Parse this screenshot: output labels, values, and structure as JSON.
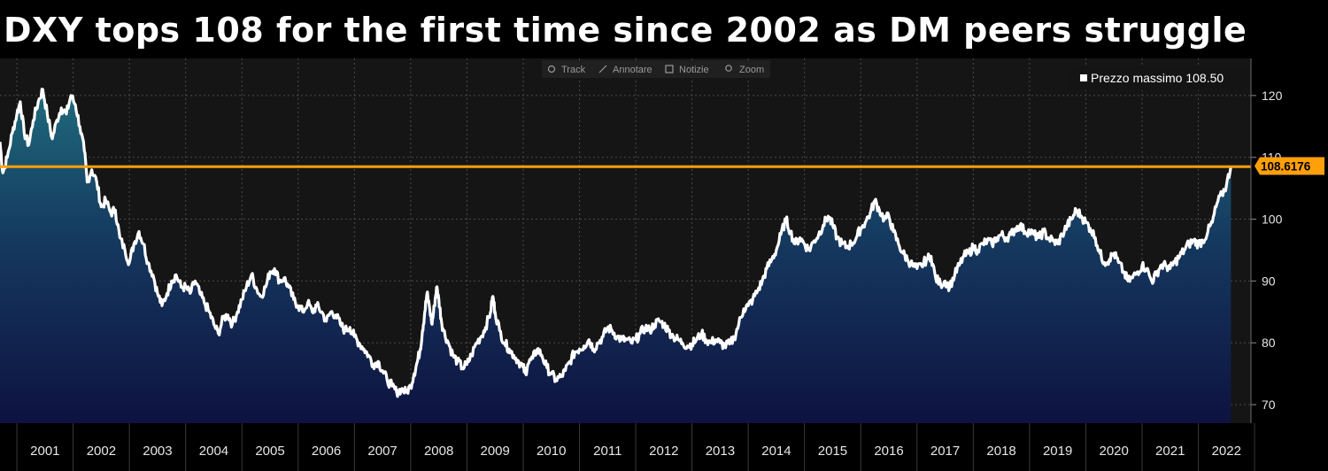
{
  "title": "DXY tops 108 for the first time since 2002 as DM peers struggle",
  "toolbar": {
    "items": [
      {
        "label": "Track",
        "icon": "track-icon"
      },
      {
        "label": "Annotare",
        "icon": "pencil-icon"
      },
      {
        "label": "Notizie",
        "icon": "news-icon"
      },
      {
        "label": "Zoom",
        "icon": "zoom-icon"
      }
    ]
  },
  "colors": {
    "background": "#151515",
    "line": "#ffffff",
    "fill_top": "#1f6a7c",
    "fill_bottom": "#0e1240",
    "threshold": "#ff9f0a",
    "grid": "#4a4a4a",
    "axis_text": "#e6e6e6"
  },
  "chart_data": {
    "type": "area",
    "title": "DXY tops 108 for the first time since 2002 as DM peers struggle",
    "xlabel": "",
    "ylabel": "",
    "x_range": [
      2000.7,
      2022.7
    ],
    "ylim": [
      67,
      126
    ],
    "yticks": [
      70,
      80,
      90,
      100,
      110,
      120
    ],
    "xticks": [
      "2001",
      "2002",
      "2003",
      "2004",
      "2005",
      "2006",
      "2007",
      "2008",
      "2009",
      "2010",
      "2011",
      "2012",
      "2013",
      "2014",
      "2015",
      "2016",
      "2017",
      "2018",
      "2019",
      "2020",
      "2021",
      "2022"
    ],
    "grid": true,
    "legend": {
      "position": "top-right",
      "label": "Prezzo massimo 108.50"
    },
    "threshold": {
      "value": 108.5
    },
    "last_value_label": "108.6176",
    "series": [
      {
        "values": [
          [
            2000.7,
            112.5
          ],
          [
            2000.75,
            107.5
          ],
          [
            2000.83,
            110.0
          ],
          [
            2000.92,
            114.0
          ],
          [
            2001.0,
            117.0
          ],
          [
            2001.06,
            119.0
          ],
          [
            2001.13,
            114.0
          ],
          [
            2001.21,
            112.0
          ],
          [
            2001.29,
            116.0
          ],
          [
            2001.38,
            119.0
          ],
          [
            2001.46,
            121.0
          ],
          [
            2001.54,
            117.0
          ],
          [
            2001.63,
            113.0
          ],
          [
            2001.71,
            116.0
          ],
          [
            2001.79,
            118.0
          ],
          [
            2001.88,
            117.0
          ],
          [
            2001.96,
            120.0
          ],
          [
            2002.04,
            118.5
          ],
          [
            2002.12,
            115.0
          ],
          [
            2002.2,
            111.0
          ],
          [
            2002.25,
            106.0
          ],
          [
            2002.33,
            108.0
          ],
          [
            2002.42,
            106.0
          ],
          [
            2002.5,
            102.0
          ],
          [
            2002.58,
            103.0
          ],
          [
            2002.67,
            101.0
          ],
          [
            2002.75,
            101.5
          ],
          [
            2002.83,
            97.0
          ],
          [
            2002.92,
            95.0
          ],
          [
            2003.0,
            93.0
          ],
          [
            2003.08,
            96.0
          ],
          [
            2003.17,
            98.0
          ],
          [
            2003.25,
            96.0
          ],
          [
            2003.33,
            93.0
          ],
          [
            2003.42,
            91.0
          ],
          [
            2003.5,
            88.0
          ],
          [
            2003.58,
            86.0
          ],
          [
            2003.67,
            88.0
          ],
          [
            2003.75,
            90.0
          ],
          [
            2003.83,
            91.0
          ],
          [
            2003.92,
            89.0
          ],
          [
            2004.0,
            89.0
          ],
          [
            2004.08,
            88.0
          ],
          [
            2004.17,
            90.0
          ],
          [
            2004.25,
            88.0
          ],
          [
            2004.33,
            86.5
          ],
          [
            2004.42,
            85.0
          ],
          [
            2004.5,
            83.0
          ],
          [
            2004.58,
            81.5
          ],
          [
            2004.67,
            84.0
          ],
          [
            2004.75,
            84.5
          ],
          [
            2004.83,
            83.0
          ],
          [
            2004.92,
            85.0
          ],
          [
            2005.0,
            87.0
          ],
          [
            2005.08,
            89.0
          ],
          [
            2005.17,
            91.0
          ],
          [
            2005.25,
            89.0
          ],
          [
            2005.33,
            87.5
          ],
          [
            2005.42,
            89.0
          ],
          [
            2005.5,
            91.5
          ],
          [
            2005.58,
            92.0
          ],
          [
            2005.67,
            90.0
          ],
          [
            2005.75,
            90.5
          ],
          [
            2005.83,
            89.0
          ],
          [
            2005.92,
            87.0
          ],
          [
            2006.0,
            86.0
          ],
          [
            2006.08,
            85.0
          ],
          [
            2006.17,
            86.5
          ],
          [
            2006.25,
            85.0
          ],
          [
            2006.33,
            86.0
          ],
          [
            2006.42,
            85.0
          ],
          [
            2006.5,
            83.5
          ],
          [
            2006.58,
            85.0
          ],
          [
            2006.67,
            84.5
          ],
          [
            2006.75,
            83.0
          ],
          [
            2006.83,
            82.0
          ],
          [
            2006.92,
            82.5
          ],
          [
            2007.0,
            81.0
          ],
          [
            2007.08,
            80.0
          ],
          [
            2007.17,
            79.0
          ],
          [
            2007.25,
            78.0
          ],
          [
            2007.33,
            76.5
          ],
          [
            2007.42,
            77.0
          ],
          [
            2007.5,
            75.5
          ],
          [
            2007.58,
            74.0
          ],
          [
            2007.67,
            73.0
          ],
          [
            2007.75,
            72.0
          ],
          [
            2007.83,
            72.5
          ],
          [
            2007.92,
            72.0
          ],
          [
            2008.0,
            73.0
          ],
          [
            2008.06,
            75.0
          ],
          [
            2008.12,
            77.0
          ],
          [
            2008.17,
            79.0
          ],
          [
            2008.21,
            82.0
          ],
          [
            2008.25,
            85.0
          ],
          [
            2008.29,
            88.0
          ],
          [
            2008.33,
            86.0
          ],
          [
            2008.38,
            83.0
          ],
          [
            2008.42,
            86.0
          ],
          [
            2008.46,
            89.0
          ],
          [
            2008.5,
            87.0
          ],
          [
            2008.54,
            84.0
          ],
          [
            2008.58,
            82.0
          ],
          [
            2008.67,
            80.0
          ],
          [
            2008.75,
            78.0
          ],
          [
            2008.83,
            77.0
          ],
          [
            2008.92,
            76.0
          ],
          [
            2009.0,
            76.5
          ],
          [
            2009.08,
            78.0
          ],
          [
            2009.17,
            80.0
          ],
          [
            2009.25,
            81.0
          ],
          [
            2009.33,
            82.5
          ],
          [
            2009.42,
            85.0
          ],
          [
            2009.46,
            87.5
          ],
          [
            2009.5,
            85.0
          ],
          [
            2009.58,
            82.0
          ],
          [
            2009.67,
            80.0
          ],
          [
            2009.75,
            79.0
          ],
          [
            2009.83,
            78.0
          ],
          [
            2009.92,
            77.0
          ],
          [
            2010.0,
            76.0
          ],
          [
            2010.04,
            75.0
          ],
          [
            2010.08,
            76.5
          ],
          [
            2010.17,
            77.5
          ],
          [
            2010.25,
            79.0
          ],
          [
            2010.33,
            78.0
          ],
          [
            2010.42,
            76.0
          ],
          [
            2010.5,
            75.0
          ],
          [
            2010.58,
            74.0
          ],
          [
            2010.67,
            74.5
          ],
          [
            2010.75,
            75.5
          ],
          [
            2010.83,
            77.0
          ],
          [
            2010.92,
            78.5
          ],
          [
            2011.0,
            79.0
          ],
          [
            2011.08,
            79.5
          ],
          [
            2011.17,
            80.5
          ],
          [
            2011.25,
            79.0
          ],
          [
            2011.33,
            80.0
          ],
          [
            2011.42,
            81.0
          ],
          [
            2011.5,
            82.5
          ],
          [
            2011.58,
            82.0
          ],
          [
            2011.67,
            81.0
          ],
          [
            2011.75,
            80.5
          ],
          [
            2011.83,
            80.5
          ],
          [
            2011.92,
            80.0
          ],
          [
            2012.0,
            80.5
          ],
          [
            2012.08,
            81.5
          ],
          [
            2012.17,
            82.5
          ],
          [
            2012.25,
            82.0
          ],
          [
            2012.33,
            83.0
          ],
          [
            2012.42,
            83.5
          ],
          [
            2012.5,
            83.0
          ],
          [
            2012.58,
            82.0
          ],
          [
            2012.67,
            81.0
          ],
          [
            2012.75,
            80.5
          ],
          [
            2012.83,
            80.0
          ],
          [
            2012.92,
            79.5
          ],
          [
            2013.0,
            79.8
          ],
          [
            2013.08,
            80.5
          ],
          [
            2013.17,
            81.5
          ],
          [
            2013.25,
            80.5
          ],
          [
            2013.33,
            80.0
          ],
          [
            2013.42,
            80.5
          ],
          [
            2013.5,
            80.0
          ],
          [
            2013.58,
            79.5
          ],
          [
            2013.67,
            79.8
          ],
          [
            2013.75,
            80.8
          ],
          [
            2013.83,
            83.0
          ],
          [
            2013.92,
            85.5
          ],
          [
            2014.0,
            86.0
          ],
          [
            2014.08,
            87.0
          ],
          [
            2014.17,
            88.5
          ],
          [
            2014.25,
            90.0
          ],
          [
            2014.33,
            92.0
          ],
          [
            2014.42,
            93.5
          ],
          [
            2014.5,
            95.0
          ],
          [
            2014.58,
            97.5
          ],
          [
            2014.67,
            100.0
          ],
          [
            2014.75,
            98.0
          ],
          [
            2014.83,
            96.0
          ],
          [
            2014.92,
            97.0
          ],
          [
            2015.0,
            96.0
          ],
          [
            2015.08,
            95.0
          ],
          [
            2015.17,
            96.5
          ],
          [
            2015.25,
            97.5
          ],
          [
            2015.33,
            99.0
          ],
          [
            2015.42,
            100.5
          ],
          [
            2015.5,
            99.0
          ],
          [
            2015.58,
            97.0
          ],
          [
            2015.67,
            96.0
          ],
          [
            2015.75,
            95.5
          ],
          [
            2015.83,
            96.0
          ],
          [
            2015.92,
            97.0
          ],
          [
            2016.0,
            98.5
          ],
          [
            2016.08,
            99.5
          ],
          [
            2016.17,
            101.0
          ],
          [
            2016.25,
            103.0
          ],
          [
            2016.33,
            101.5
          ],
          [
            2016.42,
            100.0
          ],
          [
            2016.5,
            100.5
          ],
          [
            2016.58,
            98.0
          ],
          [
            2016.67,
            96.0
          ],
          [
            2016.75,
            94.5
          ],
          [
            2016.83,
            93.5
          ],
          [
            2016.92,
            92.5
          ],
          [
            2017.0,
            92.0
          ],
          [
            2017.08,
            92.5
          ],
          [
            2017.17,
            93.5
          ],
          [
            2017.25,
            94.0
          ],
          [
            2017.33,
            90.5
          ],
          [
            2017.42,
            89.5
          ],
          [
            2017.5,
            90.0
          ],
          [
            2017.58,
            89.0
          ],
          [
            2017.67,
            91.0
          ],
          [
            2017.75,
            92.5
          ],
          [
            2017.83,
            94.0
          ],
          [
            2017.92,
            94.5
          ],
          [
            2018.0,
            95.5
          ],
          [
            2018.08,
            95.0
          ],
          [
            2018.17,
            96.0
          ],
          [
            2018.25,
            96.5
          ],
          [
            2018.33,
            96.0
          ],
          [
            2018.42,
            97.0
          ],
          [
            2018.5,
            97.5
          ],
          [
            2018.58,
            97.0
          ],
          [
            2018.67,
            97.5
          ],
          [
            2018.75,
            98.5
          ],
          [
            2018.83,
            99.0
          ],
          [
            2018.92,
            98.0
          ],
          [
            2019.0,
            98.0
          ],
          [
            2019.08,
            97.5
          ],
          [
            2019.17,
            97.0
          ],
          [
            2019.25,
            98.0
          ],
          [
            2019.33,
            97.0
          ],
          [
            2019.42,
            96.5
          ],
          [
            2019.5,
            96.0
          ],
          [
            2019.58,
            97.5
          ],
          [
            2019.67,
            99.0
          ],
          [
            2019.75,
            100.0
          ],
          [
            2019.83,
            101.5
          ],
          [
            2019.92,
            100.5
          ],
          [
            2020.0,
            99.5
          ],
          [
            2020.08,
            98.5
          ],
          [
            2020.17,
            97.0
          ],
          [
            2020.25,
            94.5
          ],
          [
            2020.33,
            93.0
          ],
          [
            2020.42,
            93.5
          ],
          [
            2020.5,
            94.5
          ],
          [
            2020.58,
            93.0
          ],
          [
            2020.67,
            91.5
          ],
          [
            2020.75,
            90.0
          ],
          [
            2020.83,
            90.5
          ],
          [
            2020.92,
            91.5
          ],
          [
            2021.0,
            92.5
          ],
          [
            2021.08,
            92.0
          ],
          [
            2021.17,
            90.0
          ],
          [
            2021.25,
            91.0
          ],
          [
            2021.33,
            92.5
          ],
          [
            2021.42,
            92.5
          ],
          [
            2021.5,
            92.0
          ],
          [
            2021.58,
            93.0
          ],
          [
            2021.67,
            94.0
          ],
          [
            2021.75,
            95.0
          ],
          [
            2021.83,
            96.0
          ],
          [
            2021.92,
            96.5
          ],
          [
            2022.0,
            96.0
          ],
          [
            2022.08,
            96.5
          ],
          [
            2022.17,
            98.0
          ],
          [
            2022.25,
            99.5
          ],
          [
            2022.33,
            102.5
          ],
          [
            2022.42,
            104.0
          ],
          [
            2022.5,
            105.5
          ],
          [
            2022.58,
            108.6
          ]
        ]
      }
    ]
  }
}
